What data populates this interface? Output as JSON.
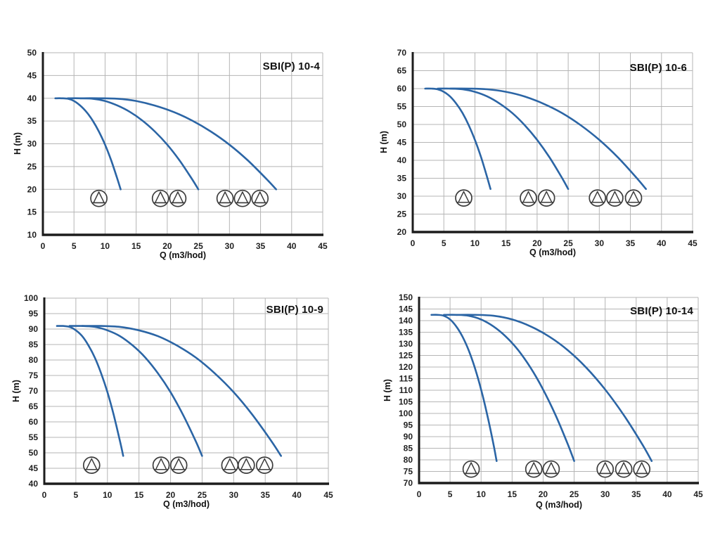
{
  "colors": {
    "curve": "#2b65a5",
    "grid": "#b5b5b5",
    "axis": "#1c1c1c",
    "text": "#1f1f1f",
    "icon_stroke": "#3c3c3c",
    "background": "#ffffff"
  },
  "chart_data": [
    {
      "type": "line",
      "title": "SBI(P) 10-4",
      "xlabel": "Q (m3/hod)",
      "ylabel": "H (m)",
      "xlim": [
        0,
        45
      ],
      "xtick_step": 5,
      "ylim": [
        10,
        50
      ],
      "ytick_step": 5,
      "grid": true,
      "legend": "none",
      "series": [
        {
          "name": "1-pump",
          "points": [
            [
              2,
              40
            ],
            [
              3,
              40
            ],
            [
              4,
              39.9
            ],
            [
              5,
              39.4
            ],
            [
              6,
              38.4
            ],
            [
              7,
              37
            ],
            [
              8,
              35.1
            ],
            [
              9,
              32.7
            ],
            [
              10,
              29.8
            ],
            [
              11,
              26.3
            ],
            [
              12,
              22.2
            ],
            [
              12.5,
              20
            ]
          ]
        },
        {
          "name": "2-pumps",
          "points": [
            [
              4,
              40
            ],
            [
              6,
              40
            ],
            [
              8,
              39.9
            ],
            [
              10,
              39.4
            ],
            [
              12,
              38.4
            ],
            [
              14,
              37
            ],
            [
              16,
              35.1
            ],
            [
              18,
              32.7
            ],
            [
              20,
              29.8
            ],
            [
              22,
              26.3
            ],
            [
              24,
              22.2
            ],
            [
              25,
              20
            ]
          ]
        },
        {
          "name": "3-pumps",
          "points": [
            [
              6,
              40
            ],
            [
              9,
              40
            ],
            [
              12,
              39.9
            ],
            [
              15,
              39.4
            ],
            [
              18,
              38.4
            ],
            [
              21,
              37
            ],
            [
              24,
              35.1
            ],
            [
              27,
              32.7
            ],
            [
              30,
              29.8
            ],
            [
              33,
              26.3
            ],
            [
              36,
              22.2
            ],
            [
              37.5,
              20
            ]
          ]
        }
      ],
      "pump_icons": {
        "h": 18,
        "groups": [
          [
            9
          ],
          [
            18.9,
            21.7
          ],
          [
            29.3,
            32.1,
            34.9
          ]
        ]
      }
    },
    {
      "type": "line",
      "title": "SBI(P) 10-6",
      "xlabel": "Q (m3/hod)",
      "ylabel": "H (m)",
      "xlim": [
        0,
        45
      ],
      "xtick_step": 5,
      "ylim": [
        20,
        70
      ],
      "ytick_step": 5,
      "grid": true,
      "legend": "none",
      "series": [
        {
          "name": "1-pump",
          "points": [
            [
              2,
              60
            ],
            [
              3,
              60
            ],
            [
              4,
              59.8
            ],
            [
              5,
              59.1
            ],
            [
              6,
              57.8
            ],
            [
              7,
              55.8
            ],
            [
              8,
              53.2
            ],
            [
              9,
              49.8
            ],
            [
              10,
              45.7
            ],
            [
              11,
              40.8
            ],
            [
              12,
              35.1
            ],
            [
              12.5,
              32
            ]
          ]
        },
        {
          "name": "2-pumps",
          "points": [
            [
              4,
              60
            ],
            [
              6,
              60
            ],
            [
              8,
              59.8
            ],
            [
              10,
              59.1
            ],
            [
              12,
              57.8
            ],
            [
              14,
              55.8
            ],
            [
              16,
              53.2
            ],
            [
              18,
              49.8
            ],
            [
              20,
              45.7
            ],
            [
              22,
              40.8
            ],
            [
              24,
              35.1
            ],
            [
              25,
              32
            ]
          ]
        },
        {
          "name": "3-pumps",
          "points": [
            [
              6,
              60
            ],
            [
              9,
              60
            ],
            [
              12,
              59.8
            ],
            [
              15,
              59.1
            ],
            [
              18,
              57.8
            ],
            [
              21,
              55.8
            ],
            [
              24,
              53.2
            ],
            [
              27,
              49.8
            ],
            [
              30,
              45.7
            ],
            [
              33,
              40.8
            ],
            [
              36,
              35.1
            ],
            [
              37.5,
              32
            ]
          ]
        }
      ],
      "pump_icons": {
        "h": 29.5,
        "groups": [
          [
            8.2
          ],
          [
            18.6,
            21.5
          ],
          [
            29.7,
            32.5,
            35.5
          ]
        ]
      }
    },
    {
      "type": "line",
      "title": "SBI(P) 10-9",
      "xlabel": "Q (m3/hod)",
      "ylabel": "H (m)",
      "xlim": [
        0,
        45
      ],
      "xtick_step": 5,
      "ylim": [
        40,
        100
      ],
      "ytick_step": 5,
      "grid": true,
      "legend": "none",
      "series": [
        {
          "name": "1-pump",
          "points": [
            [
              2,
              91
            ],
            [
              3,
              91
            ],
            [
              4,
              90.7
            ],
            [
              5,
              89.6
            ],
            [
              6,
              87.7
            ],
            [
              7,
              84.7
            ],
            [
              8,
              80.8
            ],
            [
              9,
              75.7
            ],
            [
              10,
              69.6
            ],
            [
              11,
              62.2
            ],
            [
              12,
              53.7
            ],
            [
              12.5,
              49
            ]
          ]
        },
        {
          "name": "2-pumps",
          "points": [
            [
              4,
              91
            ],
            [
              6,
              91
            ],
            [
              8,
              90.7
            ],
            [
              10,
              89.6
            ],
            [
              12,
              87.7
            ],
            [
              14,
              84.7
            ],
            [
              16,
              80.8
            ],
            [
              18,
              75.7
            ],
            [
              20,
              69.6
            ],
            [
              22,
              62.2
            ],
            [
              24,
              53.7
            ],
            [
              25,
              49
            ]
          ]
        },
        {
          "name": "3-pumps",
          "points": [
            [
              6,
              91
            ],
            [
              9,
              91
            ],
            [
              12,
              90.7
            ],
            [
              15,
              89.6
            ],
            [
              18,
              87.7
            ],
            [
              21,
              84.7
            ],
            [
              24,
              80.8
            ],
            [
              27,
              75.7
            ],
            [
              30,
              69.6
            ],
            [
              33,
              62.2
            ],
            [
              36,
              53.7
            ],
            [
              37.5,
              49
            ]
          ]
        }
      ],
      "pump_icons": {
        "h": 46,
        "groups": [
          [
            7.5
          ],
          [
            18.5,
            21.3
          ],
          [
            29.4,
            32,
            34.9
          ]
        ]
      }
    },
    {
      "type": "line",
      "title": "SBI(P) 10-14",
      "xlabel": "Q (m3/hod)",
      "ylabel": "H (m)",
      "xlim": [
        0,
        45
      ],
      "xtick_step": 5,
      "ylim": [
        70,
        150
      ],
      "ytick_step": 5,
      "grid": true,
      "legend": "none",
      "series": [
        {
          "name": "1-pump",
          "points": [
            [
              2,
              142.5
            ],
            [
              3,
              142.5
            ],
            [
              4,
              142.1
            ],
            [
              5,
              140.5
            ],
            [
              6,
              137.5
            ],
            [
              7,
              133.1
            ],
            [
              8,
              127.2
            ],
            [
              9,
              119.6
            ],
            [
              10,
              110.3
            ],
            [
              11,
              99.3
            ],
            [
              12,
              86.6
            ],
            [
              12.5,
              79.5
            ]
          ]
        },
        {
          "name": "2-pumps",
          "points": [
            [
              4,
              142.5
            ],
            [
              6,
              142.5
            ],
            [
              8,
              142.1
            ],
            [
              10,
              140.5
            ],
            [
              12,
              137.5
            ],
            [
              14,
              133.1
            ],
            [
              16,
              127.2
            ],
            [
              18,
              119.6
            ],
            [
              20,
              110.3
            ],
            [
              22,
              99.3
            ],
            [
              24,
              86.6
            ],
            [
              25,
              79.5
            ]
          ]
        },
        {
          "name": "3-pumps",
          "points": [
            [
              6,
              142.5
            ],
            [
              9,
              142.5
            ],
            [
              12,
              142.1
            ],
            [
              15,
              140.5
            ],
            [
              18,
              137.5
            ],
            [
              21,
              133.1
            ],
            [
              24,
              127.2
            ],
            [
              27,
              119.6
            ],
            [
              30,
              110.3
            ],
            [
              33,
              99.3
            ],
            [
              36,
              86.6
            ],
            [
              37.5,
              79.5
            ]
          ]
        }
      ],
      "pump_icons": {
        "h": 76,
        "groups": [
          [
            8.4
          ],
          [
            18.5,
            21.3
          ],
          [
            30,
            33,
            35.9
          ]
        ]
      }
    }
  ]
}
